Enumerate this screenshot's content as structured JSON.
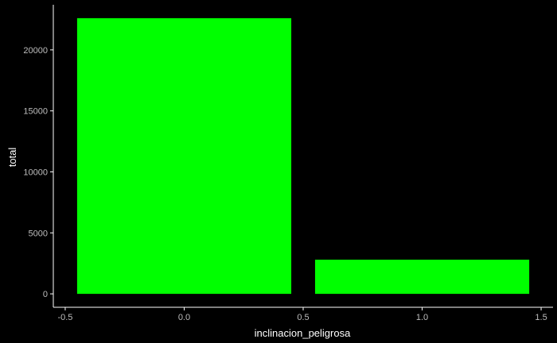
{
  "chart_data": {
    "type": "bar",
    "title": "",
    "xlabel": "inclinacion_peligrosa",
    "ylabel": "total",
    "x": [
      0,
      1
    ],
    "values": [
      22600,
      2800
    ],
    "bar_width": 0.9,
    "xlim": [
      -0.55,
      1.55
    ],
    "ylim": [
      -1100,
      23700
    ],
    "x_ticks": [
      -0.5,
      0.0,
      0.5,
      1.0,
      1.5
    ],
    "x_tick_labels": [
      "-0.5",
      "0.0",
      "0.5",
      "1.0",
      "1.5"
    ],
    "y_ticks": [
      0,
      5000,
      10000,
      15000,
      20000
    ],
    "y_tick_labels": [
      "0",
      "5000",
      "10000",
      "15000",
      "20000"
    ],
    "grid": false,
    "legend": "none",
    "bar_color": "#00ff00",
    "background_color": "#000000",
    "axis_color": "#ffffff"
  }
}
